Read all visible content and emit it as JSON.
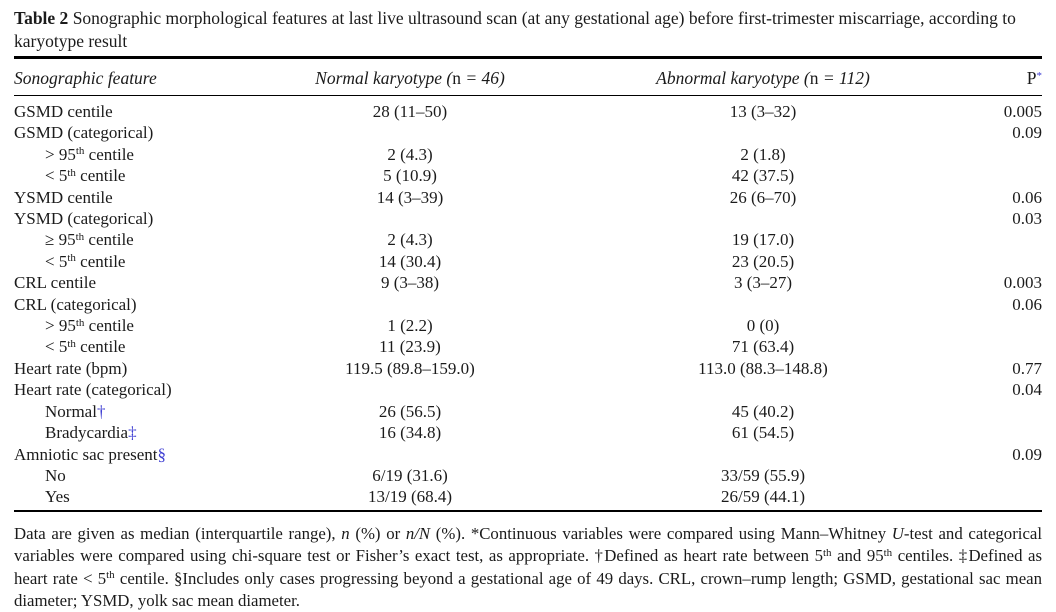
{
  "caption": {
    "label": "Table 2",
    "text": "Sonographic morphological features at last live ultrasound scan (at any gestational age) before first-trimester miscarriage, according to karyotype result"
  },
  "header": {
    "feature": "Sonographic feature",
    "normal": {
      "name": "Normal karyotype",
      "n_open": " (",
      "n_char": "n",
      "n_rest": " = 46)"
    },
    "abnormal": {
      "name": "Abnormal karyotype",
      "n_open": " (",
      "n_char": "n",
      "n_rest": " = 112)"
    },
    "p": {
      "label": "P",
      "mark": "*"
    }
  },
  "rows": [
    {
      "feature": {
        "pre": "GSMD centile"
      },
      "normal": "28 (11–50)",
      "abnormal": "13 (3–32)",
      "p": "0.005"
    },
    {
      "feature": {
        "pre": "GSMD (categorical)"
      },
      "p": "0.09"
    },
    {
      "indent": true,
      "feature": {
        "pre": "> 95",
        "sup": "th",
        "post": " centile"
      },
      "normal": "2 (4.3)",
      "abnormal": "2 (1.8)"
    },
    {
      "indent": true,
      "feature": {
        "pre": "< 5",
        "sup": "th",
        "post": " centile"
      },
      "normal": "5 (10.9)",
      "abnormal": "42 (37.5)"
    },
    {
      "feature": {
        "pre": "YSMD centile"
      },
      "normal": "14 (3–39)",
      "abnormal": "26 (6–70)",
      "p": "0.06"
    },
    {
      "feature": {
        "pre": "YSMD (categorical)"
      },
      "p": "0.03"
    },
    {
      "indent": true,
      "feature": {
        "pre": "≥ 95",
        "sup": "th",
        "post": " centile"
      },
      "normal": "2 (4.3)",
      "abnormal": "19 (17.0)"
    },
    {
      "indent": true,
      "feature": {
        "pre": "< 5",
        "sup": "th",
        "post": " centile"
      },
      "normal": "14 (30.4)",
      "abnormal": "23 (20.5)"
    },
    {
      "feature": {
        "pre": "CRL centile"
      },
      "normal": "9 (3–38)",
      "abnormal": "3 (3–27)",
      "p": "0.003"
    },
    {
      "feature": {
        "pre": "CRL (categorical)"
      },
      "p": "0.06"
    },
    {
      "indent": true,
      "feature": {
        "pre": "> 95",
        "sup": "th",
        "post": " centile"
      },
      "normal": "1 (2.2)",
      "abnormal": "0 (0)"
    },
    {
      "indent": true,
      "feature": {
        "pre": "< 5",
        "sup": "th",
        "post": " centile"
      },
      "normal": "11 (23.9)",
      "abnormal": "71 (63.4)"
    },
    {
      "feature": {
        "pre": "Heart rate (bpm)"
      },
      "normal": "119.5 (89.8–159.0)",
      "abnormal": "113.0 (88.3–148.8)",
      "p": "0.77"
    },
    {
      "feature": {
        "pre": "Heart rate (categorical)"
      },
      "p": "0.04"
    },
    {
      "indent": true,
      "feature": {
        "pre": "Normal",
        "mark": "†"
      },
      "normal": "26 (56.5)",
      "abnormal": "45 (40.2)"
    },
    {
      "indent": true,
      "feature": {
        "pre": "Bradycardia",
        "mark": "‡"
      },
      "normal": "16 (34.8)",
      "abnormal": "61 (54.5)"
    },
    {
      "feature": {
        "pre": "Amniotic sac present",
        "mark": "§"
      },
      "p": "0.09"
    },
    {
      "indent": true,
      "feature": {
        "pre": "No"
      },
      "normal": "6/19 (31.6)",
      "abnormal": "33/59 (55.9)"
    },
    {
      "indent": true,
      "feature": {
        "pre": "Yes"
      },
      "normal": "13/19 (68.4)",
      "abnormal": "26/59 (44.1)"
    }
  ],
  "footnote": {
    "segments": [
      {
        "t": "Data are given as median (interquartile range), "
      },
      {
        "t": "n",
        "s": "i"
      },
      {
        "t": " (%) or "
      },
      {
        "t": "n/N",
        "s": "i"
      },
      {
        "t": " (%). *Continuous variables were compared using Mann–Whitney "
      },
      {
        "t": "U",
        "s": "i"
      },
      {
        "t": "-test and categorical variables were compared using chi-square test or Fisher’s exact test, as appropriate. †Defined as heart rate between 5"
      },
      {
        "t": "th",
        "s": "sup"
      },
      {
        "t": " and 95"
      },
      {
        "t": "th",
        "s": "sup"
      },
      {
        "t": " centiles. ‡Defined as heart rate < 5"
      },
      {
        "t": "th",
        "s": "sup"
      },
      {
        "t": " centile. §Includes only cases progressing beyond a gestational age of 49 days. CRL, crown–rump length; GSMD, gestational sac mean diameter; YSMD, yolk sac mean diameter."
      }
    ]
  },
  "colors": {
    "text": "#1b1b1b",
    "footnote_marker_blue": "#3d3dd2",
    "rule": "#000000"
  }
}
